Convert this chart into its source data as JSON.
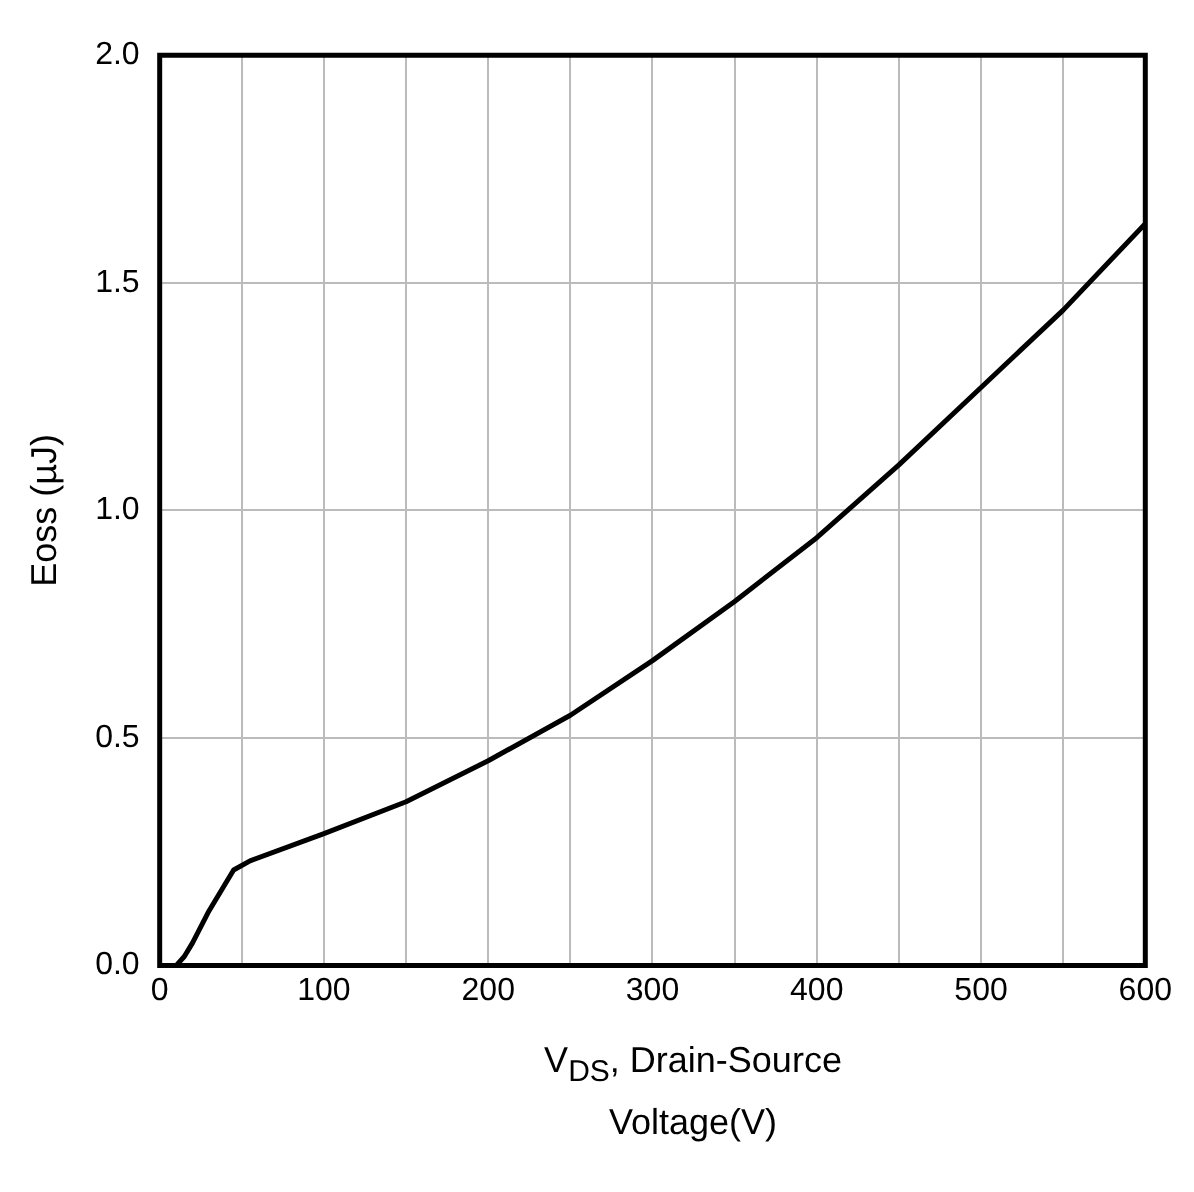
{
  "chart_data": {
    "type": "line",
    "xlabel": "V$_{DS}$, Drain-Source Voltage(V)",
    "ylabel": "Eoss (µJ)",
    "x": [
      10,
      15,
      20,
      30,
      45,
      55,
      100,
      150,
      200,
      250,
      300,
      350,
      400,
      450,
      500,
      550,
      600
    ],
    "series": [
      {
        "color": "#000000",
        "values": [
          0,
          0.02,
          0.05,
          0.12,
          0.21,
          0.23,
          0.29,
          0.36,
          0.45,
          0.55,
          0.67,
          0.8,
          0.94,
          1.1,
          1.27,
          1.44,
          1.63
        ]
      }
    ],
    "xlim": [
      0,
      600
    ],
    "xticks": [
      0,
      {
        "value": 50,
        "label": null
      },
      100,
      {
        "value": 150,
        "label": null
      },
      200,
      {
        "value": 250,
        "label": null
      },
      300,
      {
        "value": 350,
        "label": null
      },
      400,
      {
        "value": 450,
        "label": null
      },
      500,
      {
        "value": 550,
        "label": null
      },
      600
    ],
    "ylim": [
      0,
      2
    ],
    "yticks": [
      {
        "value": 0,
        "label": "0.0"
      },
      {
        "value": 0.5,
        "label": "0.5"
      },
      {
        "value": 1,
        "label": "1.0"
      },
      {
        "value": 1.5,
        "label": "1.5"
      },
      {
        "value": 2,
        "label": "2.0"
      }
    ],
    "grid": true,
    "legend": false,
    "marker": "none",
    "line_style": "solid"
  }
}
